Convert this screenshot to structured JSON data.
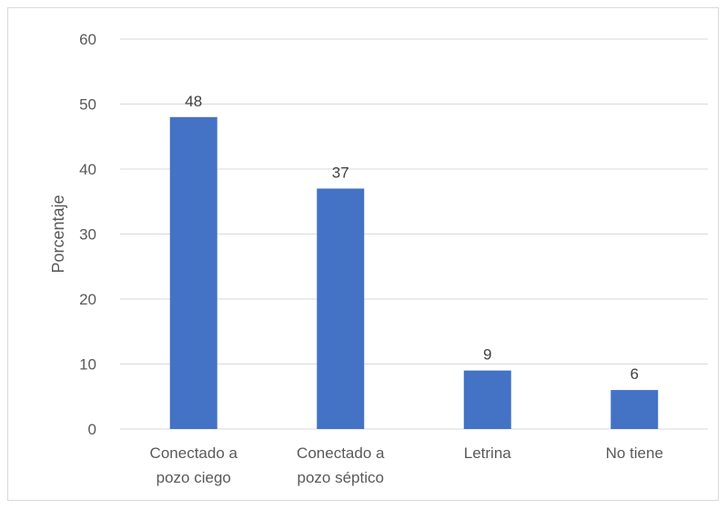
{
  "chart_data": {
    "type": "bar",
    "title": "",
    "xlabel": "",
    "ylabel": "Porcentaje",
    "ylim": [
      0,
      60
    ],
    "yticks": [
      0,
      10,
      20,
      30,
      40,
      50,
      60
    ],
    "categories": [
      [
        "Conectado a",
        "pozo ciego"
      ],
      [
        "Conectado a",
        "pozo séptico"
      ],
      [
        "Letrina"
      ],
      [
        "No tiene"
      ]
    ],
    "values": [
      48,
      37,
      9,
      6
    ],
    "data_labels": [
      "48",
      "37",
      "9",
      "6"
    ],
    "grid": true,
    "legend": "none",
    "colors": {
      "bar": "#4472C4",
      "grid": "#d9d9d9"
    }
  }
}
